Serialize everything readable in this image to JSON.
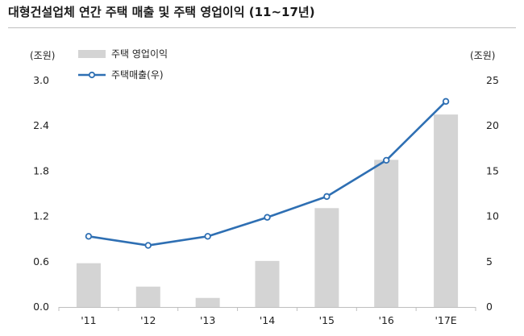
{
  "title": "대형건설업체  연간 주택 매출 및 주택 영업이익 (11~17년)",
  "units": {
    "left": "(조원)",
    "right": "(조원)"
  },
  "colors": {
    "bar": "#d4d4d4",
    "line": "#2e6fb3",
    "axis": "#bfbfbf",
    "marker_fill": "#ffffff"
  },
  "chart_data": {
    "type": "bar",
    "title": "대형건설업체  연간 주택 매출 및 주택 영업이익 (11~17년)",
    "categories": [
      "'11",
      "'12",
      "'13",
      "'14",
      "'15",
      "'16",
      "'17E"
    ],
    "series": [
      {
        "name": "주택 영업이익",
        "type": "bar",
        "axis": "left",
        "values": [
          0.58,
          0.27,
          0.12,
          0.61,
          1.31,
          1.95,
          2.55
        ]
      },
      {
        "name": "주택매출(우)",
        "type": "line",
        "axis": "right",
        "values": [
          7.8,
          6.8,
          7.8,
          9.9,
          12.2,
          16.2,
          22.7
        ]
      }
    ],
    "y_left": {
      "label": "(조원)",
      "range": [
        0,
        3.0
      ],
      "ticks": [
        "3.0",
        "2.4",
        "1.8",
        "1.2",
        "0.6",
        "0.0"
      ]
    },
    "y_right": {
      "label": "(조원)",
      "range": [
        0,
        25
      ],
      "ticks": [
        "25",
        "20",
        "15",
        "10",
        "5",
        "0"
      ]
    },
    "legend": [
      "주택 영업이익",
      "주택매출(우)"
    ],
    "legend_position": "top-left",
    "grid": false
  }
}
